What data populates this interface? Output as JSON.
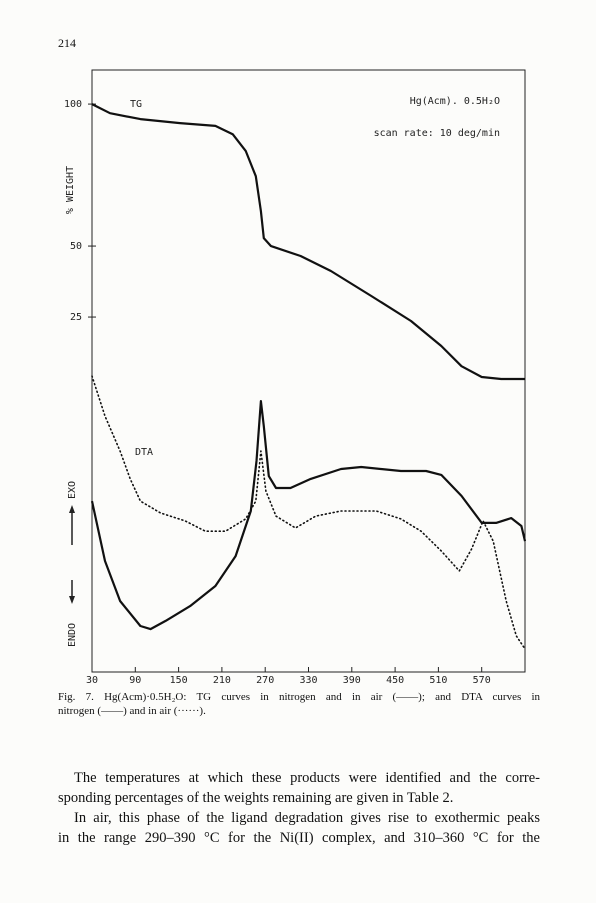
{
  "page_number": "214",
  "chart_data": {
    "type": "line",
    "title": "Hg(Acm). 0.5H₂O",
    "subtitle": "scan rate: 10 deg/min",
    "ylabel": "% WEIGHT",
    "exo_label": "EXO",
    "endo_label": "ENDO",
    "xlim": [
      30,
      630
    ],
    "xticks": [
      30,
      90,
      150,
      210,
      270,
      330,
      390,
      450,
      510,
      570
    ],
    "ylim": [
      -100,
      112
    ],
    "yticks": [
      25,
      50,
      100
    ],
    "series": [
      {
        "name": "TG",
        "color": "#111111",
        "style": "solid",
        "x": [
          30,
          55,
          97,
          152,
          201,
          225,
          243,
          257,
          264,
          268,
          278,
          319,
          361,
          417,
          472,
          514,
          542,
          570,
          597,
          630
        ],
        "values": [
          100,
          96.8,
          94.7,
          93.3,
          92.3,
          89.4,
          83.5,
          74.6,
          62.3,
          52.8,
          50,
          46.5,
          41.2,
          32.4,
          23.6,
          14.8,
          7.7,
          3.9,
          3.2,
          3.2
        ]
      },
      {
        "name": "DTA",
        "color": "#111111",
        "style": "solid",
        "x": [
          30,
          48,
          69,
          97,
          111,
          132,
          166,
          201,
          229,
          250,
          258,
          264,
          268,
          275,
          285,
          305,
          333,
          375,
          403,
          458,
          493,
          514,
          542,
          570,
          590,
          611,
          625,
          630
        ],
        "values": [
          -39.8,
          -60.9,
          -75,
          -83.8,
          -84.9,
          -82,
          -76.8,
          -69.7,
          -59.2,
          -43.3,
          -25.7,
          -4.6,
          -13.4,
          -31,
          -35.2,
          -35.2,
          -32,
          -28.5,
          -27.8,
          -29.2,
          -29.2,
          -30.6,
          -38,
          -47.5,
          -47.5,
          -45.8,
          -48.6,
          -53.9
        ]
      },
      {
        "color": "#111111",
        "style": "dotted",
        "x": [
          30,
          48,
          69,
          83,
          97,
          125,
          159,
          187,
          215,
          243,
          257,
          264,
          271,
          285,
          312,
          340,
          375,
          424,
          458,
          486,
          514,
          539,
          556,
          572,
          586,
          604,
          618,
          630
        ],
        "values": [
          4.2,
          -9.9,
          -22.2,
          -32,
          -39.8,
          -44,
          -46.8,
          -50.4,
          -50.4,
          -46.1,
          -39.8,
          -22.2,
          -36.3,
          -45.1,
          -49.3,
          -45.1,
          -43.3,
          -43.3,
          -46.1,
          -50.4,
          -57.4,
          -64.4,
          -56.7,
          -46.8,
          -53.9,
          -75,
          -87.3,
          -91.9
        ]
      }
    ]
  },
  "caption": [
    "Fig. 7. Hg(Acm)·0.5H₂O: TG curves in nitrogen and in air (——); and DTA curves in",
    "nitrogen (——) and in air (······)."
  ],
  "body": [
    [
      "The temperatures at which these products were identified and the corre-",
      "sponding percentages of the weights remaining are given in Table 2."
    ],
    [
      "In air, this phase of the ligand degradation gives rise to exothermic peaks",
      "in the range 290–390 °C for the Ni(II) complex, and 310–360 °C for the"
    ]
  ]
}
